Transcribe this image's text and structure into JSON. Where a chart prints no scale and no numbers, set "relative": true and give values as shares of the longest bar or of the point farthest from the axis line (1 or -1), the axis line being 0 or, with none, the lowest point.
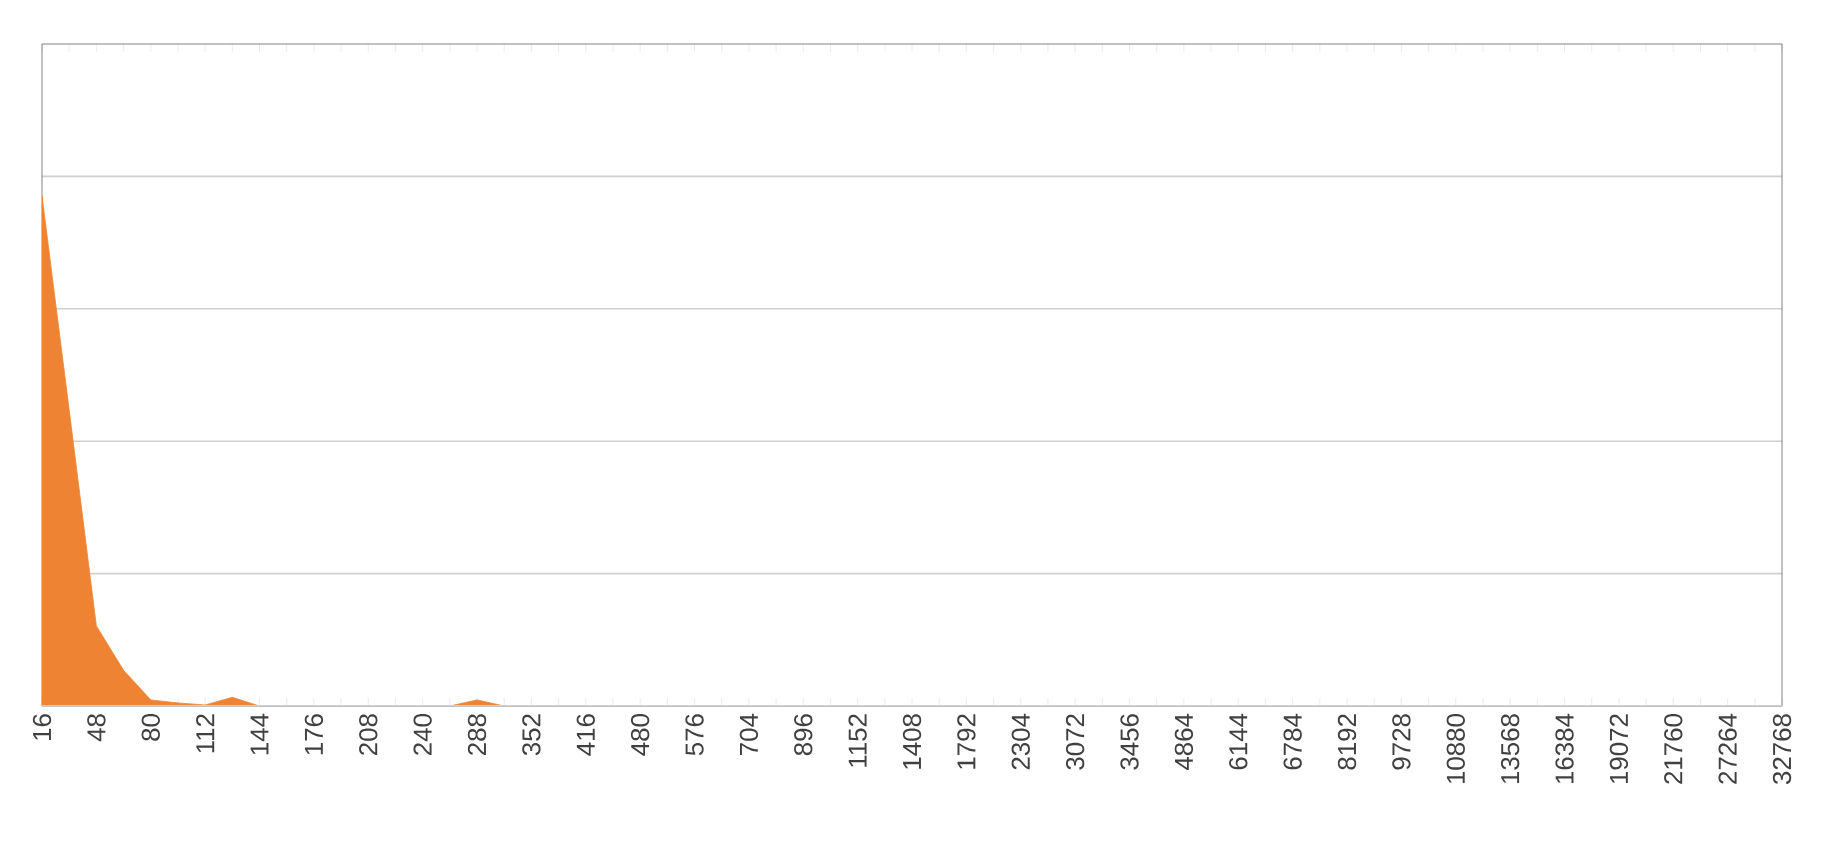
{
  "chart_data": {
    "type": "area",
    "relative": true,
    "grid": "y",
    "color": "#ee8433",
    "categories": [
      "16",
      null,
      "48",
      null,
      "80",
      null,
      "112",
      null,
      "144",
      null,
      "176",
      null,
      "208",
      null,
      "240",
      null,
      "288",
      null,
      "352",
      null,
      "416",
      null,
      "480",
      null,
      "576",
      null,
      "704",
      null,
      "896",
      null,
      "1152",
      null,
      "1408",
      null,
      "1792",
      null,
      "2304",
      null,
      "3072",
      null,
      "3456",
      null,
      "4864",
      null,
      "6144",
      null,
      "6784",
      null,
      "8192",
      null,
      "9728",
      null,
      "10880",
      null,
      "13568",
      null,
      "16384",
      null,
      "19072",
      null,
      "21760",
      null,
      "27264",
      null,
      "32768"
    ],
    "values": [
      1,
      0.58,
      0.157,
      0.07,
      0.012,
      0.006,
      0.002,
      0.017,
      0,
      0,
      0,
      0,
      0,
      0,
      0,
      0,
      0.012,
      0,
      0,
      0,
      0,
      0,
      0,
      0,
      0,
      0,
      0,
      0,
      0,
      0,
      0,
      0,
      0,
      0,
      0,
      0,
      0,
      0,
      0,
      0,
      0,
      0,
      0,
      0,
      0,
      0,
      0,
      0,
      0,
      0,
      0,
      0,
      0,
      0,
      0,
      0,
      0,
      0,
      0,
      0,
      0,
      0,
      0,
      0,
      0
    ]
  }
}
